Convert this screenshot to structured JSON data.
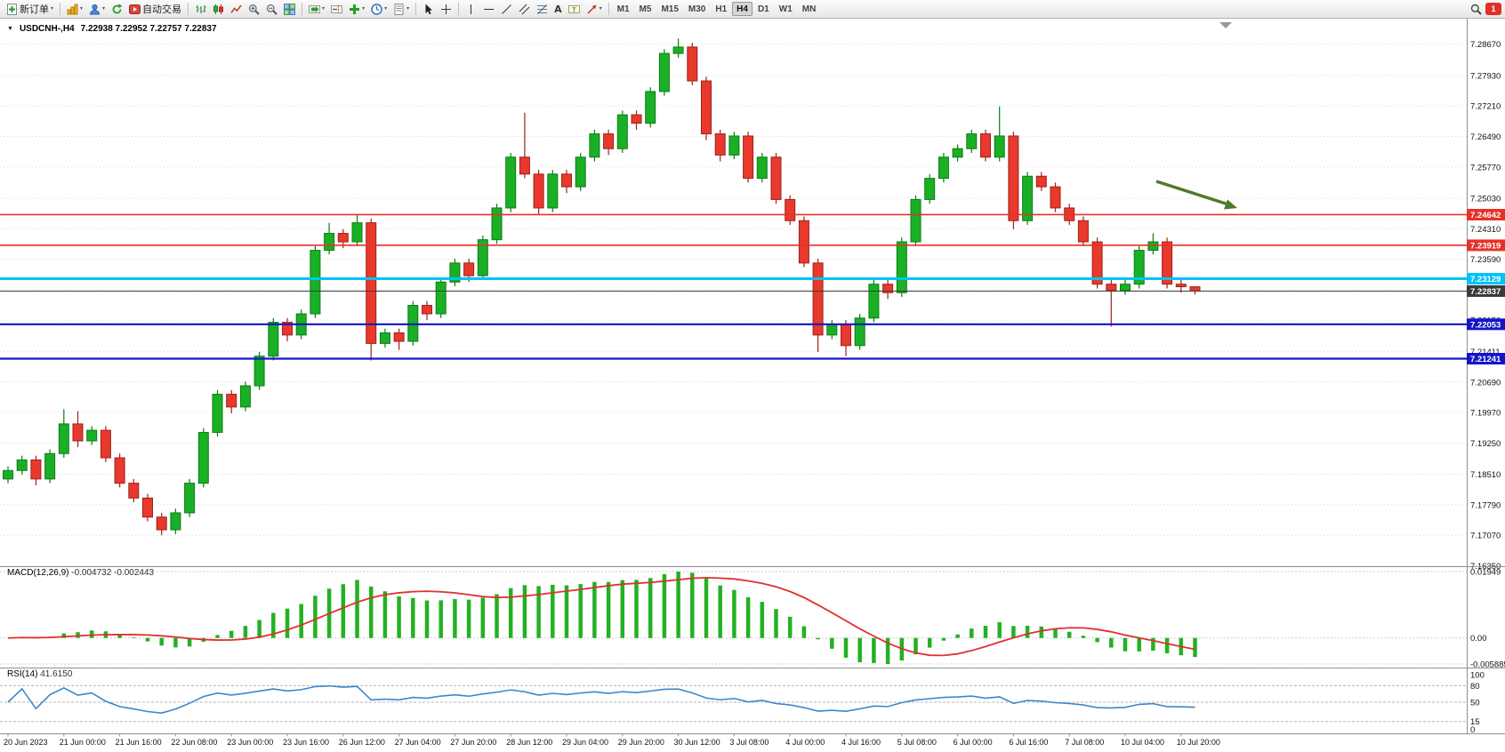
{
  "toolbar": {
    "new_order_label": "新订单",
    "autotrade_label": "自动交易",
    "timeframes": [
      "M1",
      "M5",
      "M15",
      "M30",
      "H1",
      "H4",
      "D1",
      "W1",
      "MN"
    ],
    "active_timeframe": "H4",
    "notification_count": "1",
    "icons": [
      "new-order",
      "new-chart",
      "profiles",
      "refresh",
      "autotrade",
      "bar-chart",
      "candlestick-chart",
      "line-chart",
      "zoom-in",
      "zoom-out",
      "tile-windows",
      "auto-scroll",
      "chart-shift",
      "indicators",
      "periods",
      "templates",
      "cursor",
      "crosshair",
      "vertical-line",
      "horizontal-line",
      "trendline",
      "equidistant-channel",
      "fibonacci-retracement",
      "text",
      "text-label",
      "arrows",
      "search",
      "notifications"
    ]
  },
  "chart": {
    "title": "USDCNH-,H4",
    "quote": "7.22938 7.22952 7.22757 7.22837",
    "up_color": "#19b025",
    "down_color": "#e8392c",
    "up_edge": "#0d7d16",
    "down_edge": "#9c221a",
    "arrow_color": "#4f7a28",
    "price_scale": {
      "max": 7.2867,
      "min": 7.1635
    },
    "price_axis_labels": [
      "7.28670",
      "7.27930",
      "7.27210",
      "7.26490",
      "7.25770",
      "7.25030",
      "7.24310",
      "7.23590",
      "7.22870",
      "7.22150",
      "7.21411",
      "7.20690",
      "7.19970",
      "7.19250",
      "7.18510",
      "7.17790",
      "7.17070",
      "7.16350"
    ],
    "hlines": [
      {
        "value": 7.24642,
        "label": "7.24642",
        "color": "#e53229",
        "width": 1.6
      },
      {
        "value": 7.23919,
        "label": "7.23919",
        "color": "#e53229",
        "width": 1.6
      },
      {
        "value": 7.23129,
        "label": "7.23129",
        "color": "#00c3f5",
        "width": 3
      },
      {
        "value": 7.22837,
        "label": "7.22837",
        "color": "#3a3a3a",
        "width": 1
      },
      {
        "value": 7.22053,
        "label": "7.22053",
        "color": "#1414c8",
        "width": 2.2
      },
      {
        "value": 7.21241,
        "label": "7.21241",
        "color": "#1414c8",
        "width": 2.2
      }
    ],
    "time_axis_labels": [
      "20 Jun 2023",
      "21 Jun 00:00",
      "21 Jun 16:00",
      "22 Jun 08:00",
      "23 Jun 00:00",
      "23 Jun 16:00",
      "26 Jun 12:00",
      "27 Jun 04:00",
      "27 Jun 20:00",
      "28 Jun 12:00",
      "29 Jun 04:00",
      "29 Jun 20:00",
      "30 Jun 12:00",
      "3 Jul 08:00",
      "4 Jul 00:00",
      "4 Jul 16:00",
      "5 Jul 08:00",
      "6 Jul 00:00",
      "6 Jul 16:00",
      "7 Jul 08:00",
      "10 Jul 04:00",
      "10 Jul 20:00"
    ],
    "candles": [
      [
        7.184,
        7.187,
        7.183,
        7.186
      ],
      [
        7.186,
        7.1895,
        7.185,
        7.1885
      ],
      [
        7.1885,
        7.1895,
        7.1825,
        7.184
      ],
      [
        7.184,
        7.191,
        7.183,
        7.19
      ],
      [
        7.19,
        7.2005,
        7.189,
        7.197
      ],
      [
        7.197,
        7.2,
        7.1915,
        7.193
      ],
      [
        7.193,
        7.1965,
        7.192,
        7.1955
      ],
      [
        7.1955,
        7.1965,
        7.188,
        7.189
      ],
      [
        7.189,
        7.19,
        7.182,
        7.183
      ],
      [
        7.183,
        7.184,
        7.1785,
        7.1795
      ],
      [
        7.1795,
        7.1805,
        7.174,
        7.175
      ],
      [
        7.175,
        7.176,
        7.1707,
        7.172
      ],
      [
        7.172,
        7.177,
        7.171,
        7.176
      ],
      [
        7.176,
        7.184,
        7.175,
        7.183
      ],
      [
        7.183,
        7.196,
        7.182,
        7.195
      ],
      [
        7.195,
        7.205,
        7.194,
        7.204
      ],
      [
        7.204,
        7.205,
        7.1995,
        7.201
      ],
      [
        7.201,
        7.207,
        7.2,
        7.206
      ],
      [
        7.206,
        7.214,
        7.205,
        7.213
      ],
      [
        7.213,
        7.222,
        7.212,
        7.221
      ],
      [
        7.221,
        7.222,
        7.2165,
        7.218
      ],
      [
        7.218,
        7.224,
        7.217,
        7.223
      ],
      [
        7.223,
        7.239,
        7.222,
        7.238
      ],
      [
        7.238,
        7.2445,
        7.237,
        7.242
      ],
      [
        7.242,
        7.243,
        7.2385,
        7.24
      ],
      [
        7.24,
        7.2465,
        7.239,
        7.2445
      ],
      [
        7.2445,
        7.2455,
        7.212,
        7.216
      ],
      [
        7.216,
        7.2195,
        7.215,
        7.2185
      ],
      [
        7.2185,
        7.2195,
        7.2145,
        7.2165
      ],
      [
        7.2165,
        7.226,
        7.2155,
        7.225
      ],
      [
        7.225,
        7.226,
        7.2215,
        7.223
      ],
      [
        7.223,
        7.2315,
        7.222,
        7.2305
      ],
      [
        7.2305,
        7.236,
        7.2295,
        7.235
      ],
      [
        7.235,
        7.236,
        7.2305,
        7.232
      ],
      [
        7.232,
        7.2415,
        7.231,
        7.2405
      ],
      [
        7.2405,
        7.249,
        7.2395,
        7.248
      ],
      [
        7.248,
        7.261,
        7.247,
        7.26
      ],
      [
        7.26,
        7.2705,
        7.255,
        7.256
      ],
      [
        7.256,
        7.257,
        7.2465,
        7.248
      ],
      [
        7.248,
        7.257,
        7.247,
        7.256
      ],
      [
        7.256,
        7.257,
        7.2515,
        7.253
      ],
      [
        7.253,
        7.261,
        7.252,
        7.26
      ],
      [
        7.26,
        7.2665,
        7.259,
        7.2655
      ],
      [
        7.2655,
        7.2665,
        7.2605,
        7.262
      ],
      [
        7.262,
        7.271,
        7.261,
        7.27
      ],
      [
        7.27,
        7.271,
        7.2665,
        7.268
      ],
      [
        7.268,
        7.2765,
        7.267,
        7.2755
      ],
      [
        7.2755,
        7.2855,
        7.2745,
        7.2845
      ],
      [
        7.2845,
        7.288,
        7.2835,
        7.286
      ],
      [
        7.286,
        7.287,
        7.277,
        7.278
      ],
      [
        7.278,
        7.279,
        7.264,
        7.2655
      ],
      [
        7.2655,
        7.2665,
        7.259,
        7.2605
      ],
      [
        7.2605,
        7.266,
        7.2595,
        7.265
      ],
      [
        7.265,
        7.266,
        7.254,
        7.255
      ],
      [
        7.255,
        7.261,
        7.254,
        7.26
      ],
      [
        7.26,
        7.261,
        7.249,
        7.25
      ],
      [
        7.25,
        7.251,
        7.244,
        7.245
      ],
      [
        7.245,
        7.246,
        7.234,
        7.235
      ],
      [
        7.235,
        7.236,
        7.214,
        7.218
      ],
      [
        7.218,
        7.2215,
        7.217,
        7.2205
      ],
      [
        7.2205,
        7.2215,
        7.213,
        7.2155
      ],
      [
        7.2155,
        7.223,
        7.2145,
        7.222
      ],
      [
        7.222,
        7.231,
        7.221,
        7.23
      ],
      [
        7.23,
        7.231,
        7.2265,
        7.228
      ],
      [
        7.228,
        7.241,
        7.227,
        7.24
      ],
      [
        7.24,
        7.251,
        7.239,
        7.25
      ],
      [
        7.25,
        7.256,
        7.249,
        7.255
      ],
      [
        7.255,
        7.261,
        7.254,
        7.26
      ],
      [
        7.26,
        7.263,
        7.259,
        7.262
      ],
      [
        7.262,
        7.2665,
        7.261,
        7.2655
      ],
      [
        7.2655,
        7.2665,
        7.259,
        7.26
      ],
      [
        7.26,
        7.272,
        7.259,
        7.265
      ],
      [
        7.265,
        7.266,
        7.243,
        7.245
      ],
      [
        7.245,
        7.2565,
        7.244,
        7.2555
      ],
      [
        7.2555,
        7.2565,
        7.252,
        7.253
      ],
      [
        7.253,
        7.254,
        7.247,
        7.248
      ],
      [
        7.248,
        7.249,
        7.244,
        7.245
      ],
      [
        7.245,
        7.246,
        7.239,
        7.24
      ],
      [
        7.24,
        7.241,
        7.229,
        7.23
      ],
      [
        7.23,
        7.231,
        7.22,
        7.2285
      ],
      [
        7.2285,
        7.231,
        7.2275,
        7.23
      ],
      [
        7.23,
        7.239,
        7.229,
        7.238
      ],
      [
        7.238,
        7.242,
        7.237,
        7.24
      ],
      [
        7.24,
        7.241,
        7.229,
        7.23
      ],
      [
        7.23,
        7.231,
        7.228,
        7.2294
      ],
      [
        7.22938,
        7.22952,
        7.22757,
        7.22837
      ]
    ]
  },
  "macd": {
    "name": "MACD(12,26,9)",
    "value_main": "-0.004732",
    "value_signal": "-0.002443",
    "params": [
      12,
      26,
      9
    ],
    "axis_max_label": "0.01949",
    "axis_zero_label": "0.00",
    "axis_min_label": "-0.005885",
    "histogram_color": "#23b123",
    "signal_color": "#e03030"
  },
  "rsi": {
    "name": "RSI(14)",
    "value": "41.6150",
    "period": 14,
    "line_color": "#3c87cc",
    "axis": [
      [
        100,
        "100"
      ],
      [
        80,
        "80"
      ],
      [
        50,
        "50"
      ],
      [
        15,
        "15"
      ],
      [
        0,
        "0"
      ]
    ],
    "levels": [
      80,
      50,
      15
    ]
  }
}
